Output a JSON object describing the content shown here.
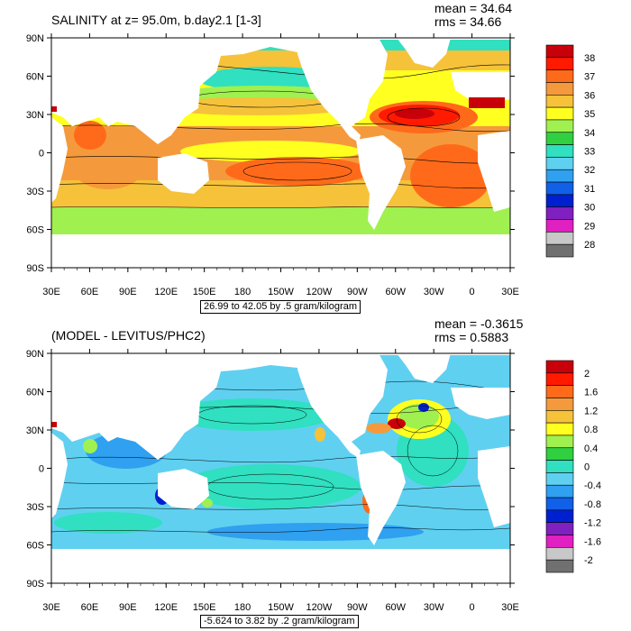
{
  "panels": [
    {
      "title": "SALINITY at z=  95.0m, b.day2.1 [1-3]",
      "mean": "mean = 34.64",
      "rms": "rms = 34.66",
      "range_label": "26.99 to 42.05 by .5 gram/kilogram",
      "colorbar": {
        "labels": [
          "38",
          "37",
          "36",
          "35",
          "34",
          "33",
          "32",
          "31",
          "30",
          "29",
          "28"
        ],
        "colors": [
          "#c8000a",
          "#ff1a00",
          "#ff6a1a",
          "#f59a3c",
          "#f5c23a",
          "#ffff20",
          "#a0f050",
          "#30d040",
          "#30e0c0",
          "#60d0f0",
          "#30a0f0",
          "#1060e8",
          "#0020d0",
          "#8020c0",
          "#e020c0",
          "#c8c8c8",
          "#707070"
        ]
      }
    },
    {
      "title": "(MODEL - LEVITUS/PHC2)",
      "mean": "mean = -0.3615",
      "rms": "rms = 0.5883",
      "range_label": "-5.624 to 3.82 by .2 gram/kilogram",
      "colorbar": {
        "labels": [
          "2",
          "1.6",
          "1.2",
          "0.8",
          "0.4",
          "0",
          "-0.4",
          "-0.8",
          "-1.2",
          "-1.6",
          "-2"
        ],
        "colors": [
          "#c8000a",
          "#ff1a00",
          "#ff6a1a",
          "#f59a3c",
          "#f5c23a",
          "#ffff20",
          "#a0f050",
          "#30d040",
          "#30e0c0",
          "#60d0f0",
          "#30a0f0",
          "#1060e8",
          "#0020d0",
          "#8020c0",
          "#e020c0",
          "#c8c8c8",
          "#707070"
        ]
      }
    }
  ],
  "axes": {
    "lat_labels": [
      "90N",
      "60N",
      "30N",
      "0",
      "30S",
      "60S",
      "90S"
    ],
    "lon_labels": [
      "30E",
      "60E",
      "90E",
      "120E",
      "150E",
      "180",
      "150W",
      "120W",
      "90W",
      "60W",
      "30W",
      "0",
      "30E"
    ]
  }
}
